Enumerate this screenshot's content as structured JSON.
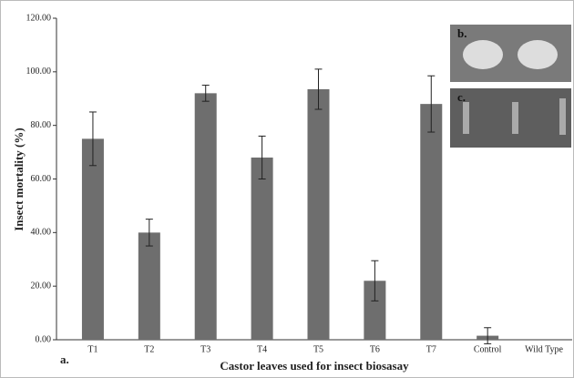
{
  "chart_data": {
    "type": "bar",
    "x_label": "Castor leaves used for insect biosasay",
    "y_label": "Insect  mortality (%)",
    "categories": [
      "T1",
      "T2",
      "T3",
      "T4",
      "T5",
      "T6",
      "T7",
      "Control",
      "Wild Type"
    ],
    "values": [
      75,
      40,
      92,
      68,
      93.5,
      22,
      88,
      1.5,
      0
    ],
    "errors": [
      10,
      5,
      3,
      8,
      7.5,
      7.5,
      10.5,
      3,
      0
    ],
    "color": "#6e6e6e",
    "ylim": [
      0,
      120
    ],
    "yticks": [
      {
        "value": 0,
        "label": "0.00"
      },
      {
        "value": 20,
        "label": "20.00"
      },
      {
        "value": 40,
        "label": "40.00"
      },
      {
        "value": 60,
        "label": "60.00"
      },
      {
        "value": 80,
        "label": "80.00"
      },
      {
        "value": 100,
        "label": "100.00"
      },
      {
        "value": 120,
        "label": "120.00"
      }
    ],
    "annotations": [
      "a.",
      "b.",
      "c."
    ]
  }
}
